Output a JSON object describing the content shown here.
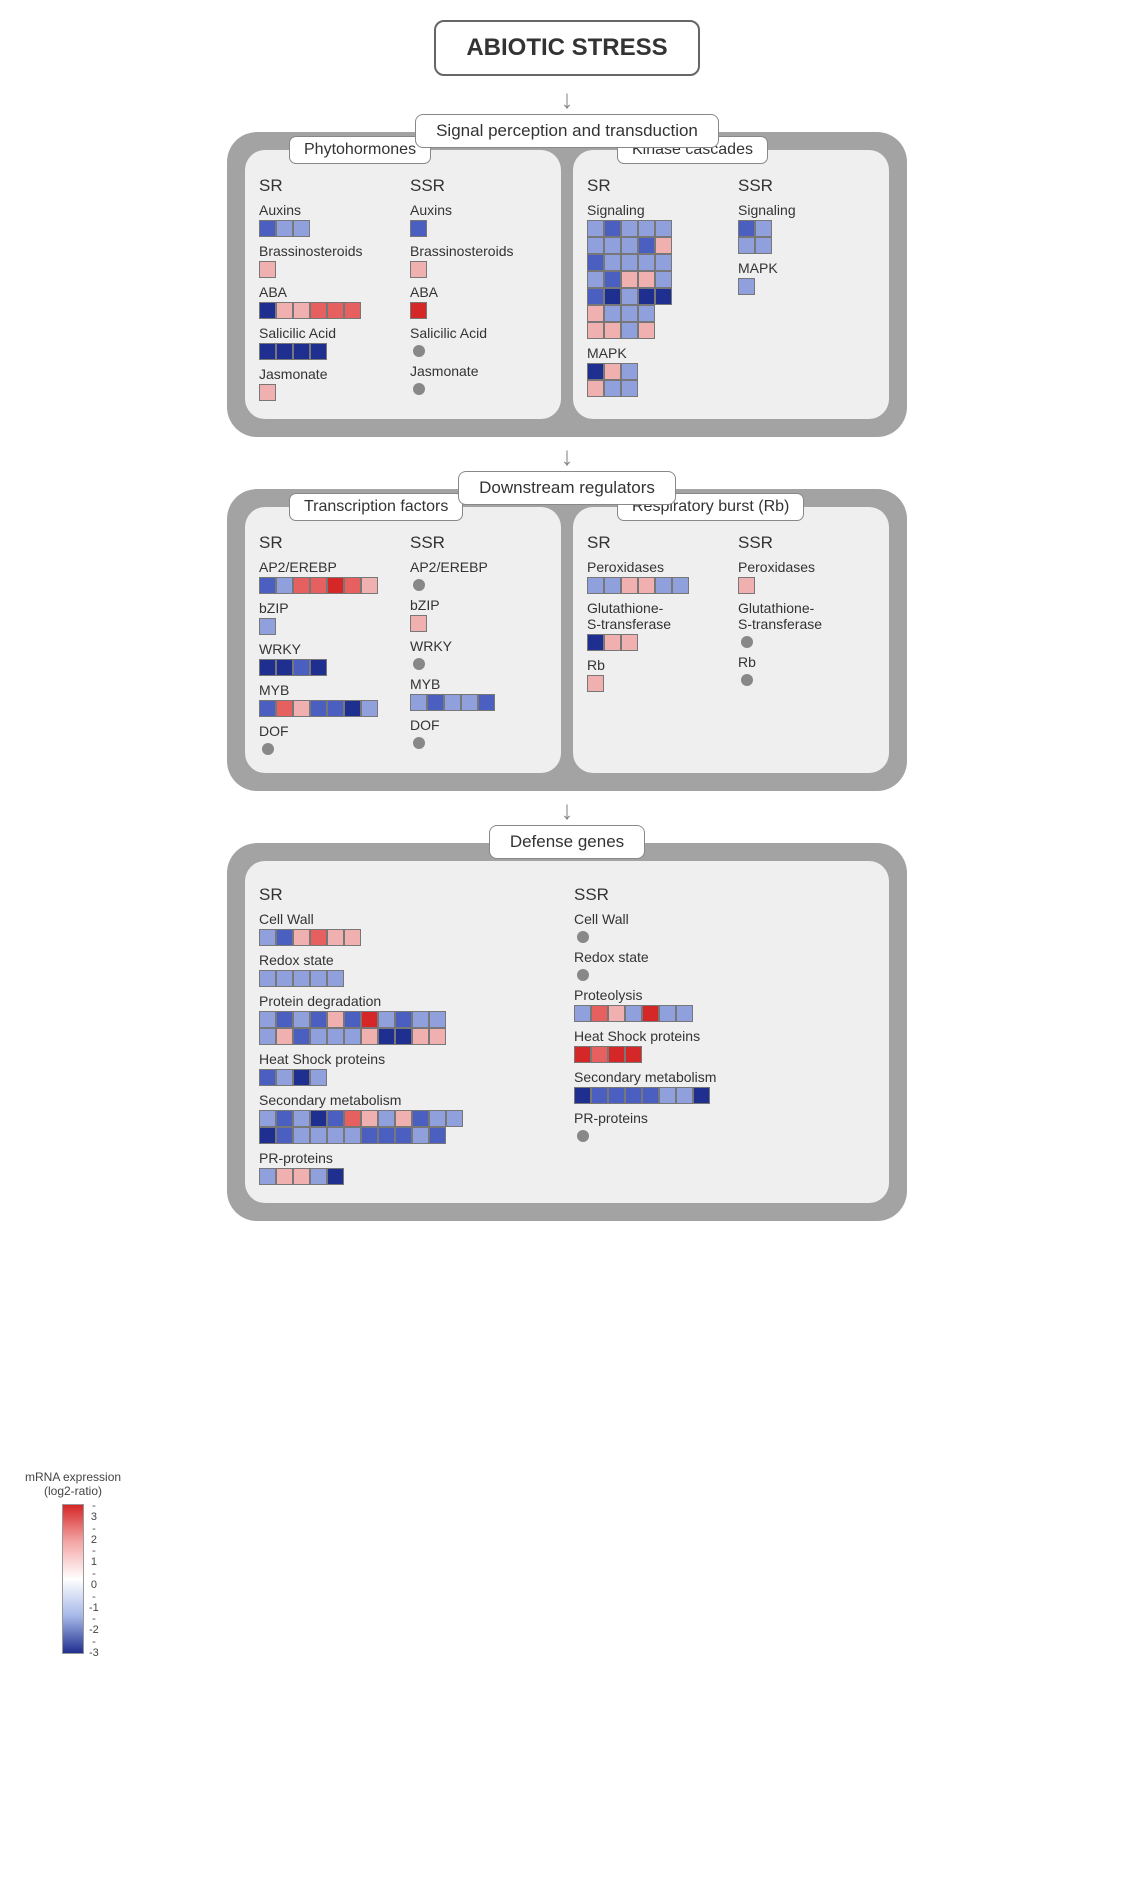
{
  "title": "ABIOTIC STRESS",
  "colormap": {
    "-3": "#1f2f8f",
    "-2": "#4b5fc0",
    "-1": "#8fa0dd",
    "0": "#e8e8f5",
    "1": "#f0b0b0",
    "2": "#e66060",
    "3": "#d62728"
  },
  "legend": {
    "title": "mRNA expression\n(log2-ratio)",
    "ticks": [
      "- 3",
      "- 2",
      "- 1",
      "- 0",
      "- -1",
      "- -2",
      "- -3"
    ]
  },
  "sections": [
    {
      "label": "Signal perception and transduction",
      "panels": [
        {
          "label": "Phytohormones",
          "cols": [
            {
              "header": "SR",
              "items": [
                {
                  "label": "Auxins",
                  "rows": [
                    [
                      -2,
                      -1,
                      -1
                    ]
                  ]
                },
                {
                  "label": "Brassinosteroids",
                  "rows": [
                    [
                      1
                    ]
                  ]
                },
                {
                  "label": "ABA",
                  "rows": [
                    [
                      -3,
                      1,
                      1,
                      2,
                      2,
                      2
                    ]
                  ]
                },
                {
                  "label": "Salicilic Acid",
                  "rows": [
                    [
                      -3,
                      -3,
                      -3,
                      -3
                    ]
                  ]
                },
                {
                  "label": "Jasmonate",
                  "rows": [
                    [
                      1
                    ]
                  ]
                }
              ]
            },
            {
              "header": "SSR",
              "items": [
                {
                  "label": "Auxins",
                  "rows": [
                    [
                      -2
                    ]
                  ]
                },
                {
                  "label": "Brassinosteroids",
                  "rows": [
                    [
                      1
                    ]
                  ]
                },
                {
                  "label": "ABA",
                  "rows": [
                    [
                      3
                    ]
                  ]
                },
                {
                  "label": "Salicilic Acid",
                  "dot": true
                },
                {
                  "label": "Jasmonate",
                  "dot": true
                }
              ]
            }
          ]
        },
        {
          "label": "Kinase cascades",
          "cols": [
            {
              "header": "SR",
              "items": [
                {
                  "label": "Signaling",
                  "rows": [
                    [
                      -1,
                      -2,
                      -1,
                      -1,
                      -1
                    ],
                    [
                      -1,
                      -1,
                      -1,
                      -2,
                      1
                    ],
                    [
                      -2,
                      -1,
                      -1,
                      -1,
                      -1
                    ],
                    [
                      -1,
                      -2,
                      1,
                      1,
                      -1
                    ],
                    [
                      -2,
                      -3,
                      -1,
                      -3,
                      -3
                    ],
                    [
                      1,
                      -1,
                      -1,
                      -1
                    ],
                    [
                      1,
                      1,
                      -1,
                      1
                    ]
                  ]
                },
                {
                  "label": "MAPK",
                  "rows": [
                    [
                      -3,
                      1,
                      -1
                    ],
                    [
                      1,
                      -1,
                      -1
                    ]
                  ]
                }
              ]
            },
            {
              "header": "SSR",
              "items": [
                {
                  "label": "Signaling",
                  "rows": [
                    [
                      -2,
                      -1
                    ],
                    [
                      -1,
                      -1
                    ]
                  ]
                },
                {
                  "label": "MAPK",
                  "rows": [
                    [
                      -1
                    ]
                  ]
                }
              ]
            }
          ]
        }
      ]
    },
    {
      "label": "Downstream regulators",
      "panels": [
        {
          "label": "Transcription factors",
          "cols": [
            {
              "header": "SR",
              "items": [
                {
                  "label": "AP2/EREBP",
                  "rows": [
                    [
                      -2,
                      -1,
                      2,
                      2,
                      3,
                      2,
                      1
                    ]
                  ]
                },
                {
                  "label": "bZIP",
                  "rows": [
                    [
                      -1
                    ]
                  ]
                },
                {
                  "label": "WRKY",
                  "rows": [
                    [
                      -3,
                      -3,
                      -2,
                      -3
                    ]
                  ]
                },
                {
                  "label": "MYB",
                  "rows": [
                    [
                      -2,
                      2,
                      1,
                      -2,
                      -2,
                      -3,
                      -1
                    ]
                  ]
                },
                {
                  "label": "DOF",
                  "dot": true
                }
              ]
            },
            {
              "header": "SSR",
              "items": [
                {
                  "label": "AP2/EREBP",
                  "dot": true
                },
                {
                  "label": "bZIP",
                  "rows": [
                    [
                      1
                    ]
                  ]
                },
                {
                  "label": "WRKY",
                  "dot": true
                },
                {
                  "label": "MYB",
                  "rows": [
                    [
                      -1,
                      -2,
                      -1,
                      -1,
                      -2
                    ]
                  ]
                },
                {
                  "label": "DOF",
                  "dot": true
                }
              ]
            }
          ]
        },
        {
          "label": "Respiratory burst (Rb)",
          "cols": [
            {
              "header": "SR",
              "items": [
                {
                  "label": "Peroxidases",
                  "rows": [
                    [
                      -1,
                      -1,
                      1,
                      1,
                      -1,
                      -1
                    ]
                  ]
                },
                {
                  "label": "Glutathione-\nS-transferase",
                  "rows": [
                    [
                      -3,
                      1,
                      1
                    ]
                  ]
                },
                {
                  "label": "Rb",
                  "rows": [
                    [
                      1
                    ]
                  ]
                }
              ]
            },
            {
              "header": "SSR",
              "items": [
                {
                  "label": "Peroxidases",
                  "rows": [
                    [
                      1
                    ]
                  ]
                },
                {
                  "label": "Glutathione-\nS-transferase",
                  "dot": true
                },
                {
                  "label": "Rb",
                  "dot": true
                }
              ]
            }
          ]
        }
      ]
    },
    {
      "label": "Defense genes",
      "single": true,
      "cols": [
        {
          "header": "SR",
          "items": [
            {
              "label": "Cell Wall",
              "rows": [
                [
                  -1,
                  -2,
                  1,
                  2,
                  1,
                  1
                ]
              ]
            },
            {
              "label": "Redox state",
              "rows": [
                [
                  -1,
                  -1,
                  -1,
                  -1,
                  -1
                ]
              ]
            },
            {
              "label": "Protein degradation",
              "rows": [
                [
                  -1,
                  -2,
                  -1,
                  -2,
                  1,
                  -2,
                  3,
                  -1,
                  -2,
                  -1,
                  -1
                ],
                [
                  -1,
                  1,
                  -2,
                  -1,
                  -1,
                  -1,
                  1,
                  -3,
                  -3,
                  1,
                  1
                ]
              ]
            },
            {
              "label": "Heat Shock proteins",
              "rows": [
                [
                  -2,
                  -1,
                  -3,
                  -1
                ]
              ]
            },
            {
              "label": "Secondary metabolism",
              "rows": [
                [
                  -1,
                  -2,
                  -1,
                  -3,
                  -2,
                  2,
                  1,
                  -1,
                  1,
                  -2,
                  -1,
                  -1
                ],
                [
                  -3,
                  -2,
                  -1,
                  -1,
                  -1,
                  -1,
                  -2,
                  -2,
                  -2,
                  -1,
                  -2
                ]
              ]
            },
            {
              "label": "PR-proteins",
              "rows": [
                [
                  -1,
                  1,
                  1,
                  -1,
                  -3
                ]
              ]
            }
          ]
        },
        {
          "header": "SSR",
          "items": [
            {
              "label": "Cell Wall",
              "dot": true
            },
            {
              "label": "Redox state",
              "dot": true
            },
            {
              "label": "Proteolysis",
              "rows": [
                [
                  -1,
                  2,
                  1,
                  -1,
                  3,
                  -1,
                  -1
                ]
              ]
            },
            {
              "label": "Heat Shock proteins",
              "rows": [
                [
                  3,
                  2,
                  3,
                  3
                ]
              ]
            },
            {
              "label": "Secondary metabolism",
              "rows": [
                [
                  -3,
                  -2,
                  -2,
                  -2,
                  -2,
                  -1,
                  -1,
                  -3
                ]
              ]
            },
            {
              "label": "PR-proteins",
              "dot": true
            }
          ]
        }
      ]
    }
  ]
}
